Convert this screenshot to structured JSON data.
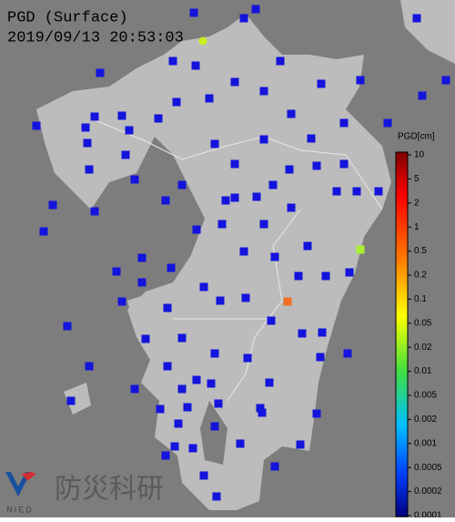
{
  "header": {
    "title": "PGD (Surface)",
    "timestamp": "2019/09/13 20:53:03"
  },
  "legend": {
    "title": "PGD[cm]",
    "labels": [
      "10",
      "5",
      "2",
      "1",
      "0.5",
      "0.2",
      "0.1",
      "0.05",
      "0.02",
      "0.01",
      "0.005",
      "0.002",
      "0.001",
      "0.0005",
      "0.0002",
      "0.0001"
    ]
  },
  "logo": {
    "name": "防災科研",
    "abbr": "NIED"
  }
}
